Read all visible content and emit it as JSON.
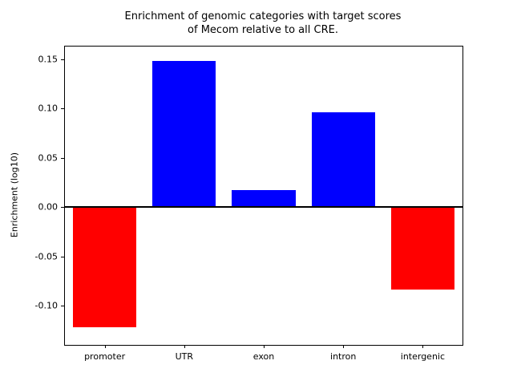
{
  "title_line1": "Enrichment of genomic categories with target scores",
  "title_line2": "of Mecom relative to all CRE.",
  "chart_data": {
    "type": "bar",
    "title": "Enrichment of genomic categories with target scores of Mecom relative to all CRE.",
    "categories": [
      "promoter",
      "UTR",
      "exon",
      "intron",
      "intergenic"
    ],
    "values": [
      -0.122,
      0.148,
      0.017,
      0.096,
      -0.084
    ],
    "xlabel": "",
    "ylabel": "Enrichment (log10)",
    "ylim": [
      -0.14,
      0.163
    ],
    "yticks": [
      -0.1,
      -0.05,
      0.0,
      0.05,
      0.1,
      0.15
    ],
    "bar_width_fraction": 0.8,
    "grid": false,
    "legend": "none",
    "zero_line": true,
    "colors": {
      "positive_bar": "#0000ff",
      "negative_bar": "#ff0000",
      "axis": "#000000",
      "background": "#ffffff"
    }
  }
}
